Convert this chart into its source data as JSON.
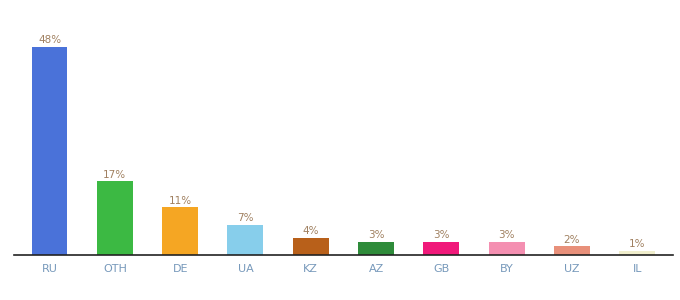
{
  "categories": [
    "RU",
    "OTH",
    "DE",
    "UA",
    "KZ",
    "AZ",
    "GB",
    "BY",
    "UZ",
    "IL"
  ],
  "values": [
    48,
    17,
    11,
    7,
    4,
    3,
    3,
    3,
    2,
    1
  ],
  "bar_colors": [
    "#4a72d9",
    "#3cb943",
    "#f5a623",
    "#87ceeb",
    "#b8601a",
    "#2e8b3a",
    "#f0197a",
    "#f48fb1",
    "#e8907a",
    "#f0eecc"
  ],
  "labels": [
    "48%",
    "17%",
    "11%",
    "7%",
    "4%",
    "3%",
    "3%",
    "3%",
    "2%",
    "1%"
  ],
  "label_color": "#a08060",
  "label_fontsize": 7.5,
  "xlabel_fontsize": 8,
  "xlabel_color": "#7799bb",
  "background_color": "#ffffff",
  "ylim": [
    0,
    54
  ],
  "bar_width": 0.55
}
